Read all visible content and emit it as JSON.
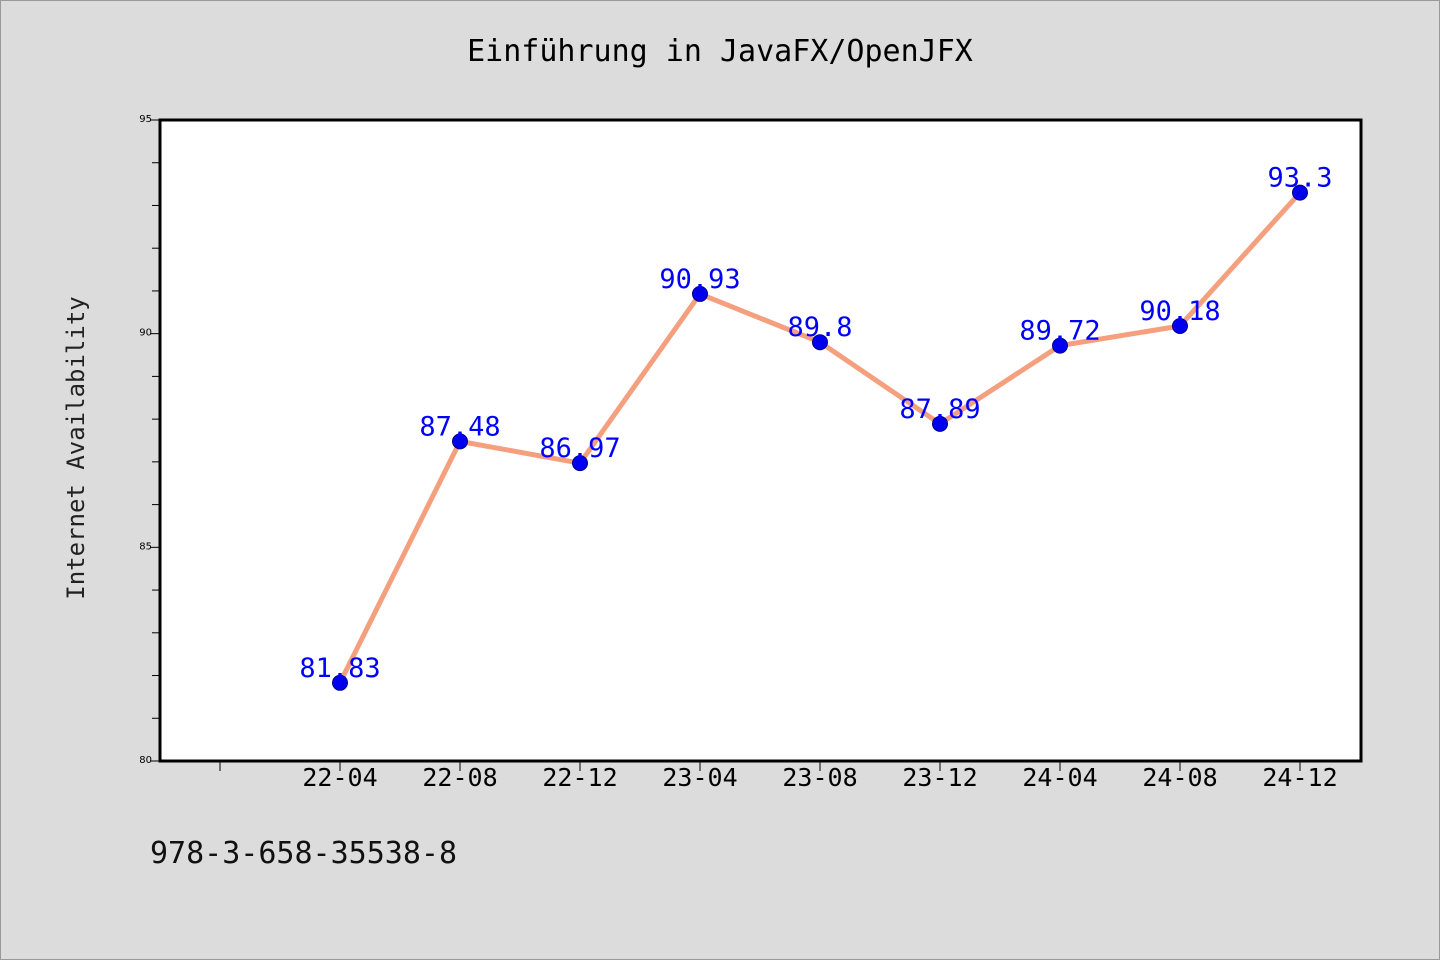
{
  "footer": {
    "isbn": "978-3-658-35538-8"
  },
  "colors": {
    "background": "#dcdcdc",
    "line": "#f4a07e",
    "marker": "#0000ee",
    "label": "#0000ff"
  },
  "chart_data": {
    "type": "line",
    "title": "Einführung in JavaFX/OpenJFX",
    "xlabel": "",
    "ylabel": "Internet Availability",
    "categories": [
      "22-04",
      "22-08",
      "22-12",
      "23-04",
      "23-08",
      "23-12",
      "24-04",
      "24-08",
      "24-12"
    ],
    "series": [
      {
        "values": [
          81.83,
          87.48,
          86.97,
          90.93,
          89.8,
          87.89,
          89.72,
          90.18,
          93.3
        ]
      }
    ],
    "data_labels": [
      "81.83",
      "87.48",
      "86.97",
      "90.93",
      "89.8",
      "87.89",
      "89.72",
      "90.18",
      "93.3"
    ],
    "ylim": [
      80,
      95
    ],
    "yticks": [
      80,
      85,
      90,
      95
    ],
    "grid": false,
    "legend": "none"
  }
}
